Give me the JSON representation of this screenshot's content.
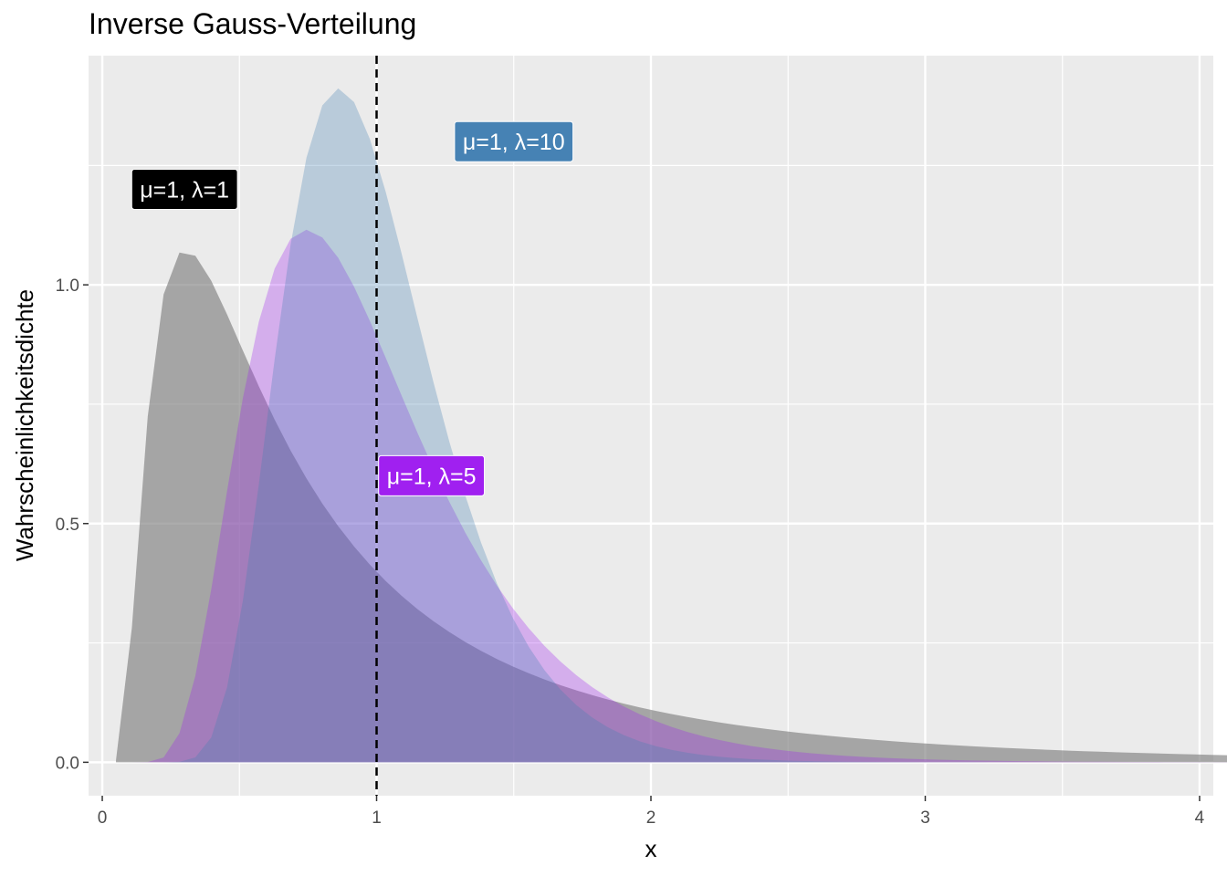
{
  "chart_data": {
    "type": "area",
    "title": "Inverse Gauss-Verteilung",
    "xlabel": "x",
    "ylabel": "Wahrscheinlichkeitsdichte",
    "xlim": [
      -0.05,
      4.05
    ],
    "ylim": [
      -0.07,
      1.48
    ],
    "x_ticks": [
      0,
      1,
      2,
      3,
      4
    ],
    "x_tick_labels": [
      "0",
      "1",
      "2",
      "3",
      "4"
    ],
    "y_ticks": [
      0,
      0.5,
      1
    ],
    "y_tick_labels": [
      "0.0",
      "0.5",
      "1.0"
    ],
    "vline_x": 1,
    "grid": true,
    "x_range": [
      0.05,
      4.1
    ],
    "series": [
      {
        "mu": 1,
        "lambda": 1,
        "fill": "#808080",
        "opacity": 0.65,
        "label": "μ=1, λ=1",
        "label_x": 0.3,
        "label_y": 1.2,
        "label_bg": "#000000"
      },
      {
        "mu": 1,
        "lambda": 5,
        "fill": "#a020f0",
        "opacity": 0.3,
        "label": "μ=1, λ=5",
        "label_x": 1.2,
        "label_y": 0.6,
        "label_bg": "#a020f0"
      },
      {
        "mu": 1,
        "lambda": 10,
        "fill": "#4682b4",
        "opacity": 0.3,
        "label": "μ=1, λ=10",
        "label_x": 1.5,
        "label_y": 1.3,
        "label_bg": "#4682b4"
      }
    ]
  }
}
